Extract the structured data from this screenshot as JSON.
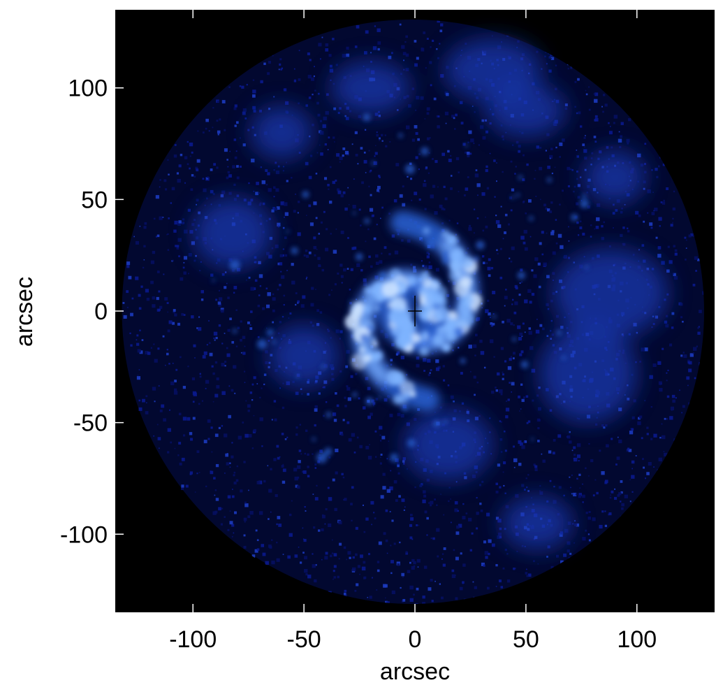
{
  "xlabel": "arcsec",
  "ylabel": "arcsec",
  "xlim": [
    -135,
    135
  ],
  "ylim": [
    -135,
    135
  ],
  "x_ticks": [
    {
      "value": -100,
      "label": "-100"
    },
    {
      "value": -50,
      "label": "-50"
    },
    {
      "value": 0,
      "label": "0"
    },
    {
      "value": 50,
      "label": "50"
    },
    {
      "value": 100,
      "label": "100"
    }
  ],
  "y_ticks": [
    {
      "value": 100,
      "label": "100"
    },
    {
      "value": 50,
      "label": "50"
    },
    {
      "value": 0,
      "label": "0"
    },
    {
      "value": -50,
      "label": "-50"
    },
    {
      "value": -100,
      "label": "-100"
    }
  ],
  "colors": {
    "background": "#000000",
    "disk_noise": "#0a1a8c",
    "emission_mid": "#2b63d6",
    "emission_bright": "#7fb4ff",
    "emission_peak": "#cfe4ff"
  },
  "center_marker": {
    "x": 0,
    "y": 0,
    "shape": "cross",
    "color": "#000000"
  },
  "field_of_view_radius": 132
}
